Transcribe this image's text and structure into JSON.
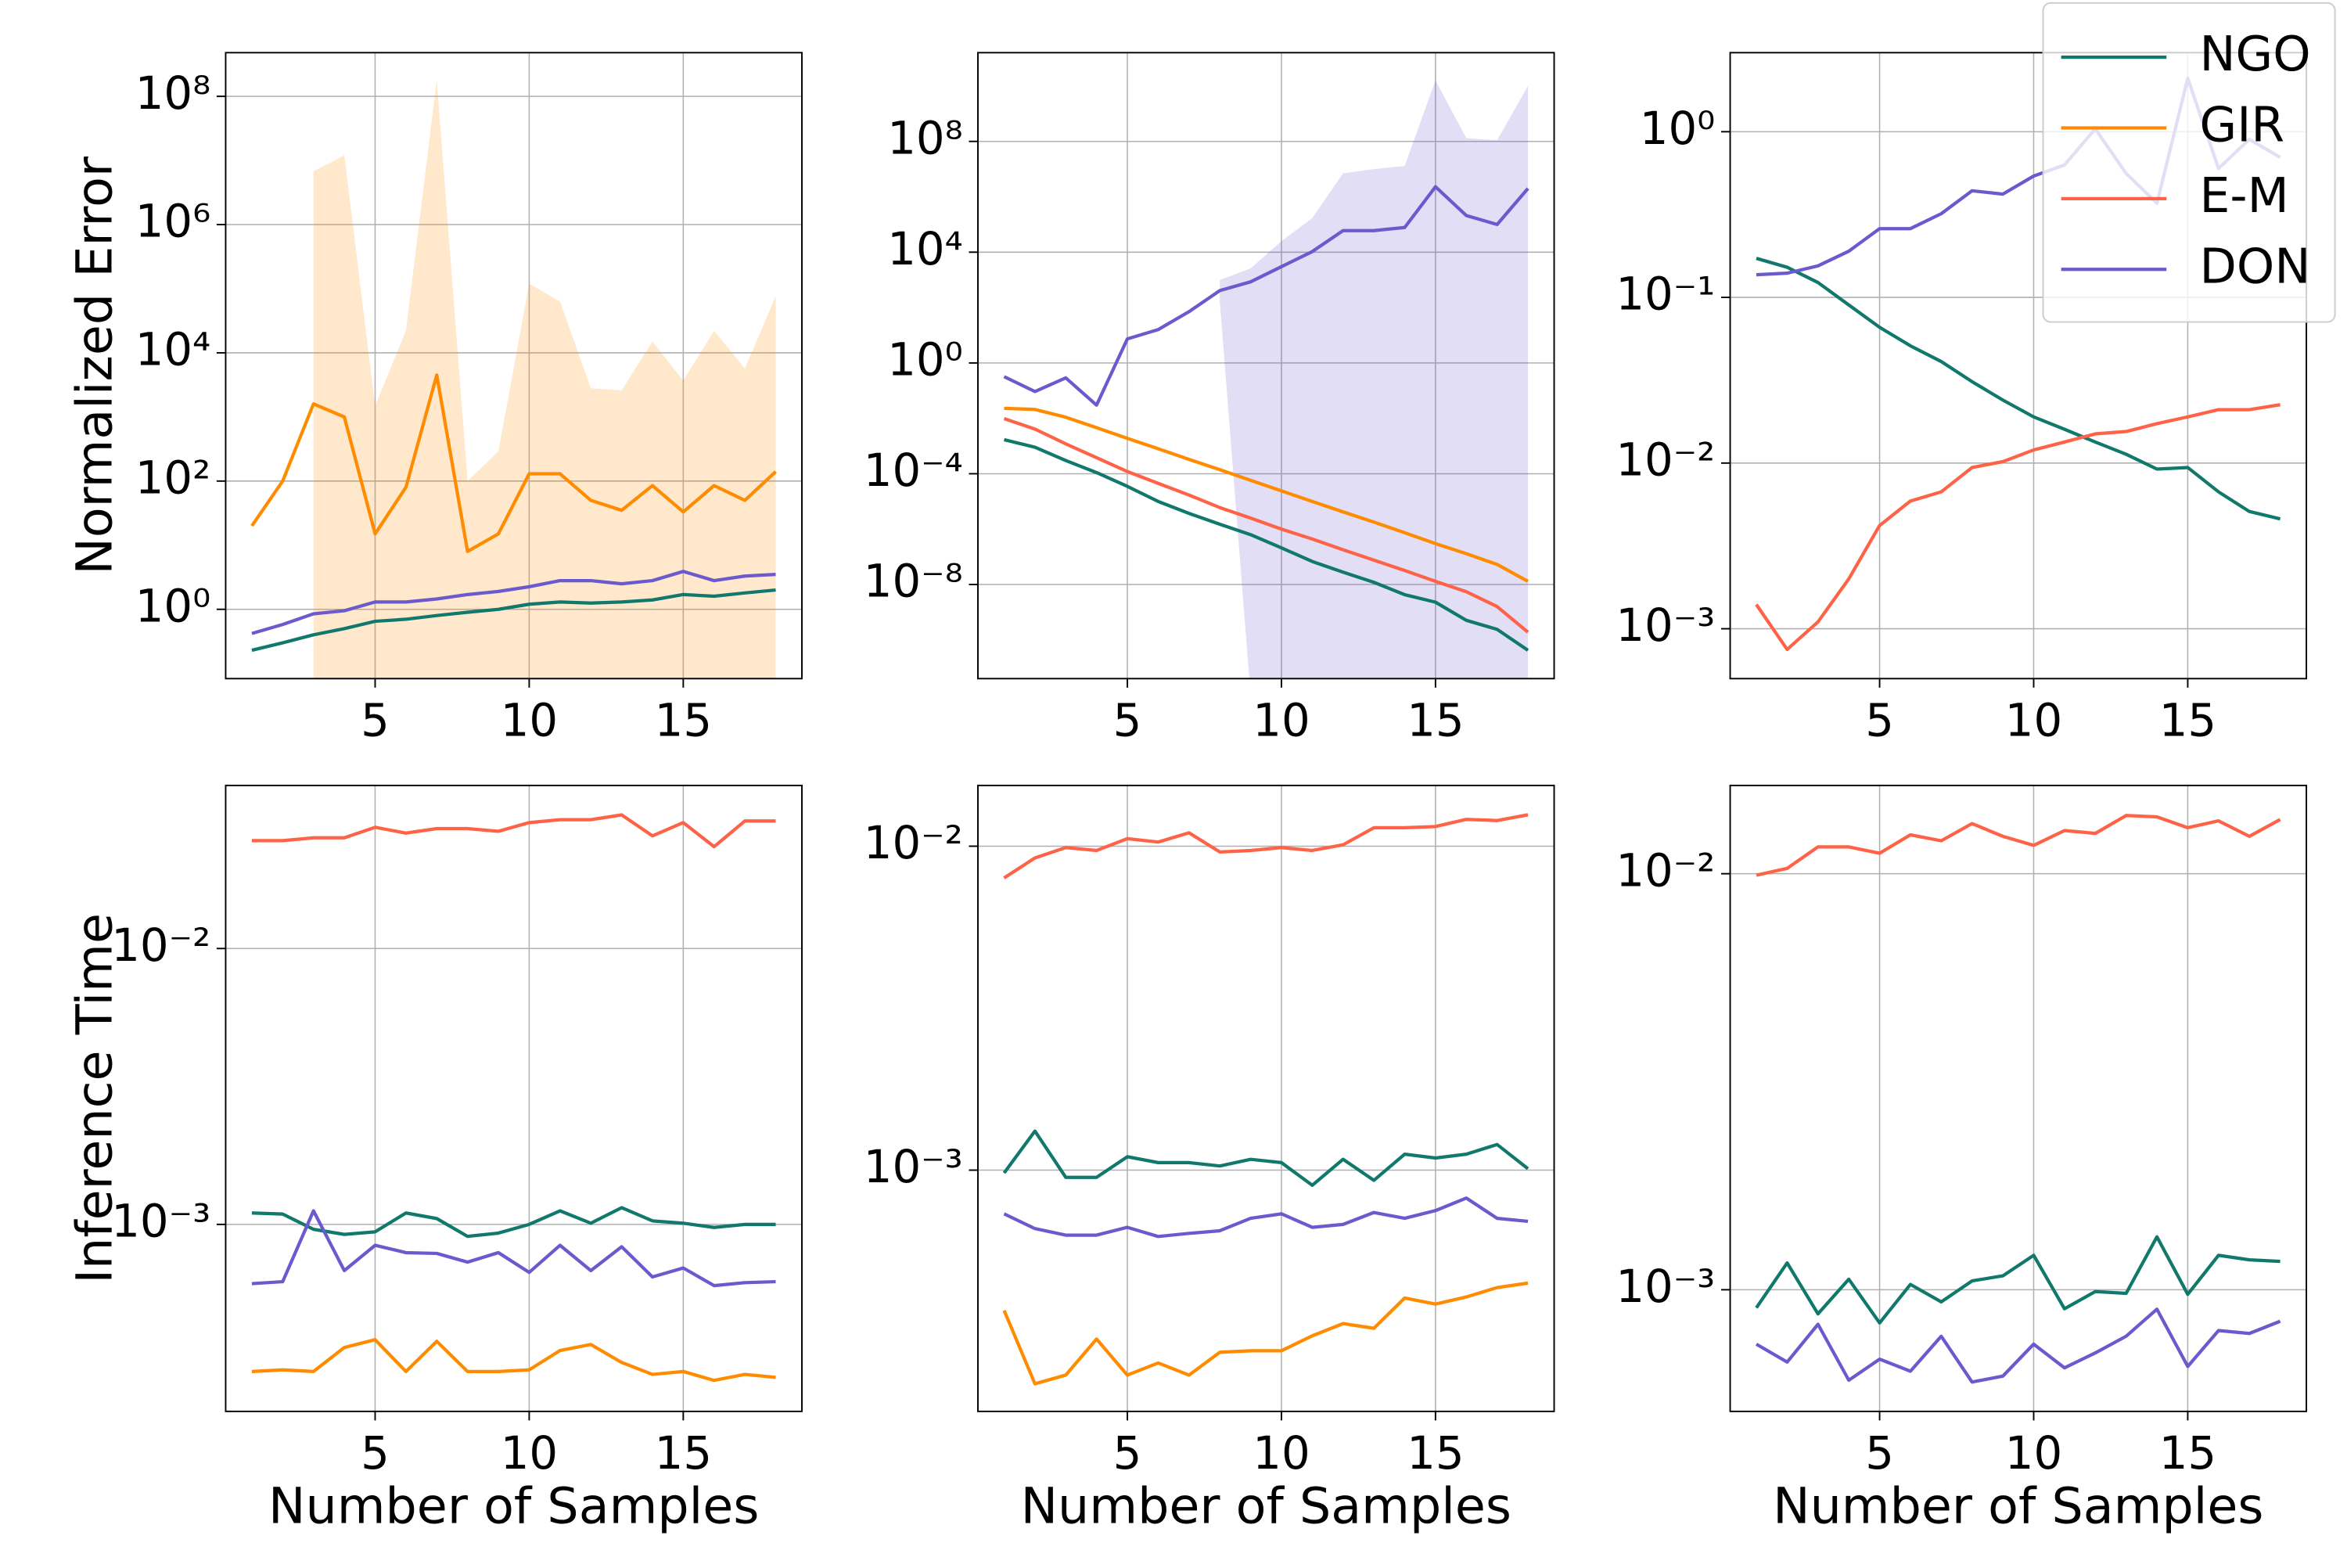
{
  "chart_data": [
    {
      "type": "line",
      "ylabel": "Normalized Error",
      "log_y": true,
      "grid": true,
      "x": [
        1,
        2,
        3,
        4,
        5,
        6,
        7,
        8,
        9,
        10,
        11,
        12,
        13,
        14,
        15,
        16,
        17,
        18
      ],
      "xlim": [
        0.15,
        18.85
      ],
      "xticks": [
        5,
        10,
        15
      ],
      "ylim": [
        0.083,
        480000000.0
      ],
      "yticks": [
        {
          "value": 1,
          "label": "10⁰"
        },
        {
          "value": 100,
          "label": "10²"
        },
        {
          "value": 10000,
          "label": "10⁴"
        },
        {
          "value": 1000000,
          "label": "10⁶"
        },
        {
          "value": 100000000,
          "label": "10⁸"
        }
      ],
      "series": [
        {
          "name": "NGO",
          "color": "#11786c",
          "values": [
            0.23,
            0.3,
            0.4,
            0.5,
            0.65,
            0.7,
            0.8,
            0.9,
            1.0,
            1.2,
            1.3,
            1.25,
            1.3,
            1.4,
            1.7,
            1.6,
            1.8,
            2.0
          ]
        },
        {
          "name": "GIR",
          "color": "#ff8c00",
          "values": [
            20,
            100,
            1600,
            1000,
            15,
            80,
            4500,
            8,
            15,
            130,
            130,
            50,
            35,
            85,
            33,
            85,
            50,
            140
          ],
          "band_lower": [
            null,
            null,
            0.01,
            0.01,
            0.01,
            0.01,
            0.01,
            0.01,
            0.01,
            0.01,
            0.01,
            0.01,
            0.01,
            0.01,
            0.01,
            0.01,
            0.01,
            0.01
          ],
          "band_upper": [
            null,
            null,
            6800000.0,
            12000000.0,
            1500,
            22000,
            180000000.0,
            100,
            290,
            120000,
            63000,
            2800,
            2600,
            15000,
            3700,
            22000,
            5700,
            76000
          ]
        },
        {
          "name": "DON",
          "color": "#6a5acd",
          "values": [
            0.42,
            0.58,
            0.85,
            0.95,
            1.3,
            1.3,
            1.45,
            1.7,
            1.9,
            2.25,
            2.8,
            2.8,
            2.5,
            2.8,
            3.9,
            2.8,
            3.3,
            3.5
          ]
        }
      ]
    },
    {
      "type": "line",
      "log_y": true,
      "grid": true,
      "x": [
        1,
        2,
        3,
        4,
        5,
        6,
        7,
        8,
        9,
        10,
        11,
        12,
        13,
        14,
        15,
        16,
        17,
        18
      ],
      "xlim": [
        0.15,
        18.85
      ],
      "xticks": [
        5,
        10,
        15
      ],
      "ylim": [
        4e-12,
        160000000000.0
      ],
      "yticks": [
        {
          "value": 1e-08,
          "label": "10⁻⁸"
        },
        {
          "value": 0.0001,
          "label": "10⁻⁴"
        },
        {
          "value": 1,
          "label": "10⁰"
        },
        {
          "value": 10000,
          "label": "10⁴"
        },
        {
          "value": 100000000,
          "label": "10⁸"
        }
      ],
      "series": [
        {
          "name": "NGO",
          "color": "#11786c",
          "values": [
            0.0017,
            0.00091,
            0.0003,
            0.00011,
            3.5e-05,
            1e-05,
            3.7e-06,
            1.5e-06,
            6.3e-07,
            2.1e-07,
            6.8e-08,
            2.8e-08,
            1.2e-08,
            4.3e-09,
            2.3e-09,
            5.1e-10,
            2.4e-10,
            4.2e-11
          ]
        },
        {
          "name": "GIR",
          "color": "#ff8c00",
          "values": [
            0.023,
            0.021,
            0.011,
            0.0046,
            0.0019,
            0.0008,
            0.00033,
            0.00014,
            5.8e-05,
            2.4e-05,
            1e-05,
            4.2e-06,
            1.8e-06,
            7.4e-07,
            3e-07,
            1.3e-07,
            5.3e-08,
            1.3e-08
          ]
        },
        {
          "name": "E-M",
          "color": "#ff6347",
          "values": [
            0.0098,
            0.0041,
            0.0012,
            0.00038,
            0.00012,
            4.5e-05,
            1.7e-05,
            6e-06,
            2.5e-06,
            1e-06,
            4.4e-07,
            1.8e-07,
            7.6e-08,
            3.2e-08,
            1.3e-08,
            5.5e-09,
            1.6e-09,
            1.9e-10
          ]
        },
        {
          "name": "DON",
          "color": "#6a5acd",
          "values": [
            0.32,
            0.093,
            0.29,
            0.03,
            7.4,
            16,
            71,
            410,
            850,
            3000,
            10500,
            60000,
            60000,
            78000,
            2300000.0,
            210000,
            100000,
            2000000.0
          ],
          "band_lower": [
            null,
            null,
            null,
            null,
            null,
            null,
            null,
            170,
            1e-12,
            1e-12,
            1e-12,
            1e-12,
            1e-12,
            1e-12,
            1e-12,
            1e-12,
            1e-12,
            1e-12
          ],
          "band_upper": [
            null,
            null,
            null,
            null,
            null,
            null,
            null,
            980,
            2600,
            25000,
            170000,
            7000000.0,
            10000000.0,
            13000000.0,
            16000000000.0,
            130000000.0,
            110000000.0,
            10000000000.0
          ]
        }
      ]
    },
    {
      "type": "line",
      "log_y": true,
      "grid": true,
      "x": [
        1,
        2,
        3,
        4,
        5,
        6,
        7,
        8,
        9,
        10,
        11,
        12,
        13,
        14,
        15,
        16,
        17,
        18
      ],
      "xlim": [
        0.15,
        18.85
      ],
      "xticks": [
        5,
        10,
        15
      ],
      "ylim": [
        0.0005,
        3.0
      ],
      "yticks": [
        {
          "value": 0.001,
          "label": "10⁻³"
        },
        {
          "value": 0.01,
          "label": "10⁻²"
        },
        {
          "value": 0.1,
          "label": "10⁻¹"
        },
        {
          "value": 1,
          "label": "10⁰"
        }
      ],
      "series": [
        {
          "name": "NGO",
          "color": "#11786c",
          "values": [
            0.172,
            0.152,
            0.123,
            0.09,
            0.066,
            0.051,
            0.041,
            0.031,
            0.024,
            0.019,
            0.016,
            0.0134,
            0.0113,
            0.0092,
            0.0094,
            0.0067,
            0.0051,
            0.0046
          ]
        },
        {
          "name": "E-M",
          "color": "#ff6347",
          "values": [
            0.0014,
            0.00075,
            0.0011,
            0.002,
            0.0042,
            0.0059,
            0.0067,
            0.0094,
            0.0102,
            0.012,
            0.0134,
            0.015,
            0.0155,
            0.0173,
            0.019,
            0.021,
            0.021,
            0.0225
          ]
        },
        {
          "name": "DON",
          "color": "#6a5acd",
          "values": [
            0.137,
            0.14,
            0.155,
            0.19,
            0.26,
            0.26,
            0.32,
            0.44,
            0.42,
            0.54,
            0.63,
            1.04,
            0.56,
            0.37,
            2.1,
            0.6,
            0.9,
            0.7
          ]
        }
      ],
      "legend": {
        "loc": "upper right",
        "items": [
          {
            "name": "NGO",
            "color": "#11786c"
          },
          {
            "name": "GIR",
            "color": "#ff8c00"
          },
          {
            "name": "E-M",
            "color": "#ff6347"
          },
          {
            "name": "DON",
            "color": "#6a5acd"
          }
        ]
      }
    },
    {
      "type": "line",
      "ylabel": "Inference Time",
      "xlabel": "Number of Samples",
      "log_y": true,
      "grid": true,
      "x": [
        1,
        2,
        3,
        4,
        5,
        6,
        7,
        8,
        9,
        10,
        11,
        12,
        13,
        14,
        15,
        16,
        17,
        18
      ],
      "xlim": [
        0.15,
        18.85
      ],
      "xticks": [
        5,
        10,
        15
      ],
      "ylim": [
        0.00021,
        0.039
      ],
      "yticks": [
        {
          "value": 0.001,
          "label": "10⁻³"
        },
        {
          "value": 0.01,
          "label": "10⁻²"
        }
      ],
      "series": [
        {
          "name": "NGO",
          "color": "#11786c",
          "values": [
            0.0011,
            0.00109,
            0.00096,
            0.00092,
            0.00094,
            0.0011,
            0.00105,
            0.000905,
            0.00093,
            0.001,
            0.00112,
            0.00101,
            0.00115,
            0.00103,
            0.00101,
            0.000975,
            0.001,
            0.001
          ]
        },
        {
          "name": "GIR",
          "color": "#ff8c00",
          "values": [
            0.000293,
            0.000297,
            0.000293,
            0.000358,
            0.000382,
            0.000293,
            0.000377,
            0.000293,
            0.000293,
            0.000297,
            0.000349,
            0.000367,
            0.000316,
            0.000286,
            0.000293,
            0.000272,
            0.000286,
            0.000279
          ]
        },
        {
          "name": "E-M",
          "color": "#ff6347",
          "values": [
            0.0246,
            0.0246,
            0.0252,
            0.0252,
            0.0275,
            0.0262,
            0.0272,
            0.0272,
            0.0266,
            0.0286,
            0.0293,
            0.0293,
            0.0305,
            0.0256,
            0.0286,
            0.0234,
            0.029,
            0.029
          ]
        },
        {
          "name": "DON",
          "color": "#6a5acd",
          "values": [
            0.00061,
            0.00062,
            0.00112,
            0.00068,
            0.00084,
            0.00079,
            0.000785,
            0.00073,
            0.00079,
            0.00067,
            0.00084,
            0.00068,
            0.00083,
            0.000645,
            0.000695,
            0.0006,
            0.000615,
            0.00062
          ]
        }
      ]
    },
    {
      "type": "line",
      "xlabel": "Number of Samples",
      "log_y": true,
      "grid": true,
      "x": [
        1,
        2,
        3,
        4,
        5,
        6,
        7,
        8,
        9,
        10,
        11,
        12,
        13,
        14,
        15,
        16,
        17,
        18
      ],
      "xlim": [
        0.15,
        18.85
      ],
      "xticks": [
        5,
        10,
        15
      ],
      "ylim": [
        0.00018,
        0.0154
      ],
      "yticks": [
        {
          "value": 0.001,
          "label": "10⁻³"
        },
        {
          "value": 0.01,
          "label": "10⁻²"
        }
      ],
      "series": [
        {
          "name": "NGO",
          "color": "#11786c",
          "values": [
            0.00098,
            0.00132,
            0.00095,
            0.00095,
            0.0011,
            0.001055,
            0.001055,
            0.00103,
            0.00108,
            0.001055,
            0.000898,
            0.00108,
            0.00093,
            0.00112,
            0.00109,
            0.00112,
            0.0012,
            0.00101
          ]
        },
        {
          "name": "GIR",
          "color": "#ff8c00",
          "values": [
            0.000369,
            0.000219,
            0.000233,
            0.000301,
            0.000233,
            0.000254,
            0.000233,
            0.000274,
            0.000277,
            0.000277,
            0.000308,
            0.000336,
            0.000325,
            0.000403,
            0.000386,
            0.000406,
            0.000434,
            0.000448
          ]
        },
        {
          "name": "E-M",
          "color": "#ff6347",
          "values": [
            0.00798,
            0.0092,
            0.0099,
            0.0097,
            0.01055,
            0.0103,
            0.011,
            0.0096,
            0.0097,
            0.0099,
            0.0097,
            0.0101,
            0.0114,
            0.0114,
            0.0115,
            0.0121,
            0.012,
            0.0125
          ]
        },
        {
          "name": "DON",
          "color": "#6a5acd",
          "values": [
            0.000733,
            0.00066,
            0.00063,
            0.00063,
            0.000666,
            0.000624,
            0.000638,
            0.00065,
            0.00071,
            0.000733,
            0.000666,
            0.00068,
            0.00074,
            0.00071,
            0.00075,
            0.00082,
            0.00071,
            0.000695
          ]
        }
      ]
    },
    {
      "type": "line",
      "xlabel": "Number of Samples",
      "log_y": true,
      "grid": true,
      "x": [
        1,
        2,
        3,
        4,
        5,
        6,
        7,
        8,
        9,
        10,
        11,
        12,
        13,
        14,
        15,
        16,
        17,
        18
      ],
      "xlim": [
        0.15,
        18.85
      ],
      "xticks": [
        5,
        10,
        15
      ],
      "ylim": [
        0.00051,
        0.0163
      ],
      "yticks": [
        {
          "value": 0.001,
          "label": "10⁻³"
        },
        {
          "value": 0.01,
          "label": "10⁻²"
        }
      ],
      "series": [
        {
          "name": "NGO",
          "color": "#11786c",
          "values": [
            0.000905,
            0.00116,
            0.000875,
            0.00106,
            0.000832,
            0.00103,
            0.000935,
            0.00105,
            0.00108,
            0.00121,
            0.0009,
            0.00099,
            0.00098,
            0.00134,
            0.000975,
            0.00121,
            0.00118,
            0.00117
          ]
        },
        {
          "name": "E-M",
          "color": "#ff6347",
          "values": [
            0.00992,
            0.0103,
            0.0116,
            0.0116,
            0.0112,
            0.0124,
            0.012,
            0.0132,
            0.0123,
            0.0117,
            0.0127,
            0.0125,
            0.0138,
            0.0137,
            0.0129,
            0.0134,
            0.0123,
            0.0135
          ]
        },
        {
          "name": "DON",
          "color": "#6a5acd",
          "values": [
            0.00074,
            0.00067,
            0.000826,
            0.000606,
            0.000681,
            0.000637,
            0.000773,
            0.0006,
            0.00062,
            0.00074,
            0.000649,
            0.000705,
            0.000773,
            0.000898,
            0.000654,
            0.000798,
            0.000785,
            0.00084
          ]
        }
      ]
    }
  ]
}
